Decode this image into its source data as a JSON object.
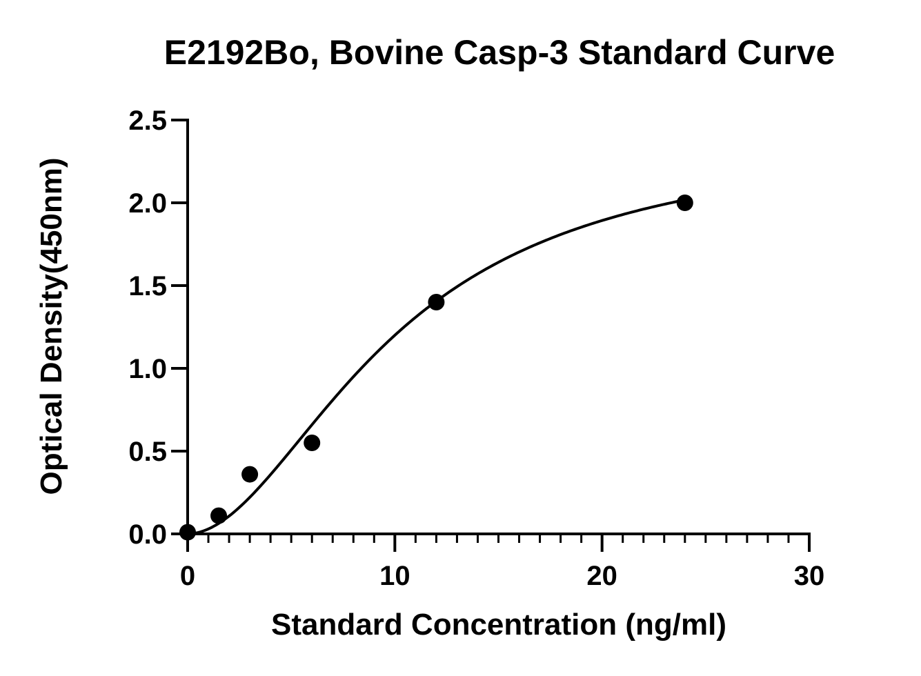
{
  "chart_data": {
    "type": "scatter",
    "title": "E2192Bo, Bovine Casp-3 Standard Curve",
    "xlabel": "Standard Concentration (ng/ml)",
    "ylabel": "Optical Density(450nm)",
    "xlim": [
      0,
      30
    ],
    "ylim": [
      0,
      2.5
    ],
    "x_ticks": [
      "0",
      "10",
      "20",
      "30"
    ],
    "y_ticks": [
      "0.0",
      "0.5",
      "1.0",
      "1.5",
      "2.0",
      "2.5"
    ],
    "x_tick_values": [
      0,
      10,
      20,
      30
    ],
    "y_tick_values": [
      0,
      0.5,
      1.0,
      1.5,
      2.0,
      2.5
    ],
    "x_minor_tick_step": 1,
    "grid": false,
    "legend": "none",
    "series": [
      {
        "points": [
          {
            "x": 0,
            "y": 0.01
          },
          {
            "x": 1.5,
            "y": 0.11
          },
          {
            "x": 3,
            "y": 0.36
          },
          {
            "x": 6,
            "y": 0.55
          },
          {
            "x": 12,
            "y": 1.4
          },
          {
            "x": 24,
            "y": 2.0
          }
        ],
        "color": "#000000"
      }
    ],
    "fit_curve": {
      "type": "four-parameter-logistic",
      "color": "#000000",
      "bottom": 0.0,
      "top": 2.4,
      "ec50": 10.0,
      "hill": 1.9
    }
  }
}
